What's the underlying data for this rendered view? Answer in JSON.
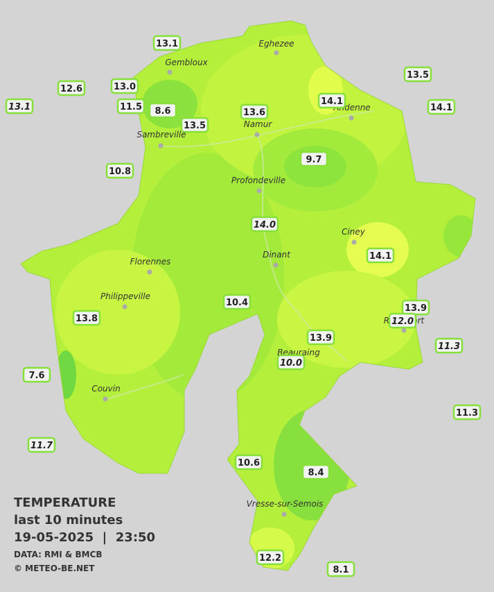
{
  "legend": {
    "title": "TEMPERATURE",
    "subtitle": "last 10 minutes",
    "timestamp": "19-05-2025  |  23:50",
    "source": "DATA: RMI & BMCB",
    "credit": "© METEO-BE.NET"
  },
  "towns": [
    "Eghezee",
    "Gembloux",
    "Andenne",
    "Namur",
    "Sambreville",
    "Profondeville",
    "Ciney",
    "Dinant",
    "Florennes",
    "Philippeville",
    "Beauraing",
    "Rochefort",
    "Couvin",
    "Vresse-sur-Semois"
  ],
  "stations": [
    {
      "label": "13.1"
    },
    {
      "label": "12.6"
    },
    {
      "label": "13.0"
    },
    {
      "label": "13.1",
      "italic": true
    },
    {
      "label": "11.5"
    },
    {
      "label": "8.6"
    },
    {
      "label": "13.5"
    },
    {
      "label": "13.6"
    },
    {
      "label": "14.1"
    },
    {
      "label": "13.5"
    },
    {
      "label": "14.1"
    },
    {
      "label": "10.8"
    },
    {
      "label": "9.7"
    },
    {
      "label": "14.0",
      "italic": true
    },
    {
      "label": "14.1"
    },
    {
      "label": "10.4"
    },
    {
      "label": "13.9"
    },
    {
      "label": "12.0",
      "italic": true
    },
    {
      "label": "13.8"
    },
    {
      "label": "13.9"
    },
    {
      "label": "11.3",
      "italic": true
    },
    {
      "label": "10.0",
      "italic": true
    },
    {
      "label": "7.6"
    },
    {
      "label": "11.3"
    },
    {
      "label": "11.7",
      "italic": true
    },
    {
      "label": "10.6"
    },
    {
      "label": "8.4"
    },
    {
      "label": "12.2"
    },
    {
      "label": "8.1"
    }
  ]
}
